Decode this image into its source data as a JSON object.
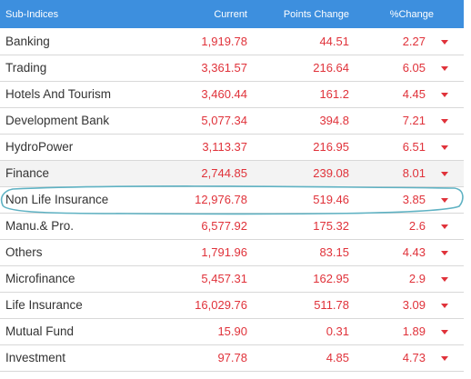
{
  "table": {
    "headers": {
      "name": "Sub-Indices",
      "current": "Current",
      "points_change": "Points Change",
      "pct_change": "%Change"
    },
    "rows": [
      {
        "name": "Banking",
        "current": "1,919.78",
        "points_change": "44.51",
        "pct_change": "2.27",
        "trend_icon": "down-caret-icon"
      },
      {
        "name": "Trading",
        "current": "3,361.57",
        "points_change": "216.64",
        "pct_change": "6.05",
        "trend_icon": "down-caret-icon"
      },
      {
        "name": "Hotels And Tourism",
        "current": "3,460.44",
        "points_change": "161.2",
        "pct_change": "4.45",
        "trend_icon": "down-caret-icon"
      },
      {
        "name": "Development Bank",
        "current": "5,077.34",
        "points_change": "394.8",
        "pct_change": "7.21",
        "trend_icon": "down-caret-icon"
      },
      {
        "name": "HydroPower",
        "current": "3,113.37",
        "points_change": "216.95",
        "pct_change": "6.51",
        "trend_icon": "down-caret-icon"
      },
      {
        "name": "Finance",
        "current": "2,744.85",
        "points_change": "239.08",
        "pct_change": "8.01",
        "trend_icon": "down-caret-icon"
      },
      {
        "name": "Non Life Insurance",
        "current": "12,976.78",
        "points_change": "519.46",
        "pct_change": "3.85",
        "trend_icon": "down-caret-icon"
      },
      {
        "name": "Manu.& Pro.",
        "current": "6,577.92",
        "points_change": "175.32",
        "pct_change": "2.6",
        "trend_icon": "down-caret-icon"
      },
      {
        "name": "Others",
        "current": "1,791.96",
        "points_change": "83.15",
        "pct_change": "4.43",
        "trend_icon": "down-caret-icon"
      },
      {
        "name": "Microfinance",
        "current": "5,457.31",
        "points_change": "162.95",
        "pct_change": "2.9",
        "trend_icon": "down-caret-icon"
      },
      {
        "name": "Life Insurance",
        "current": "16,029.76",
        "points_change": "511.78",
        "pct_change": "3.09",
        "trend_icon": "down-caret-icon"
      },
      {
        "name": "Mutual Fund",
        "current": "15.90",
        "points_change": "0.31",
        "pct_change": "1.89",
        "trend_icon": "down-caret-icon"
      },
      {
        "name": "Investment",
        "current": "97.78",
        "points_change": "4.85",
        "pct_change": "4.73",
        "trend_icon": "down-caret-icon"
      }
    ],
    "shaded_row_index": 5,
    "circled_row_index": 6
  },
  "colors": {
    "header_bg": "#3d8fde",
    "header_text": "#ffffff",
    "negative_value": "#e0323a",
    "name_text": "#333333",
    "shaded_row_bg": "#f3f3f3",
    "annotation_stroke": "#5fb2c3"
  }
}
